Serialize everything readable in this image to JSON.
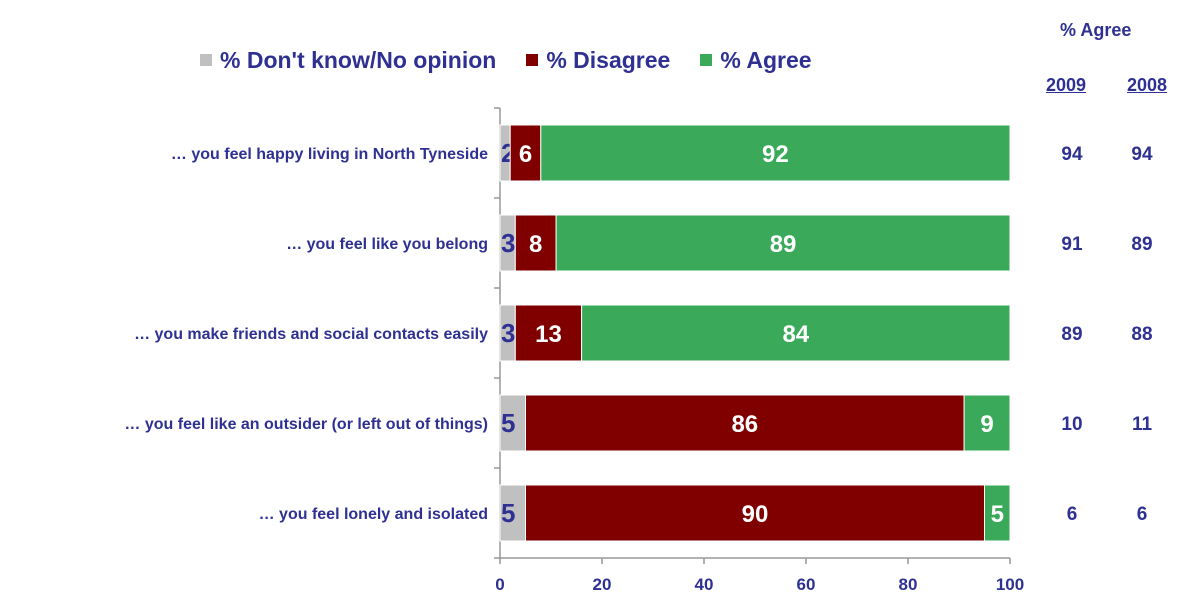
{
  "chart_data": {
    "type": "bar",
    "orientation": "horizontal",
    "stacked": true,
    "categories": [
      "… you feel happy living in North Tyneside",
      "… you feel like you belong",
      "… you make friends and social contacts easily",
      "… you feel like an outsider (or left out of things)",
      "… you feel lonely and isolated"
    ],
    "series": [
      {
        "name": "% Don't know/No opinion",
        "color": "#c0c0c0",
        "label_color": "#2e3192",
        "values": [
          2,
          3,
          3,
          5,
          5
        ]
      },
      {
        "name": "% Disagree",
        "color": "#800000",
        "label_color": "#ffffff",
        "values": [
          6,
          8,
          13,
          86,
          90
        ]
      },
      {
        "name": "% Agree",
        "color": "#3aaa5a",
        "label_color": "#ffffff",
        "values": [
          92,
          89,
          84,
          9,
          5
        ]
      }
    ],
    "xlim": [
      0,
      100
    ],
    "xticks": [
      0,
      20,
      40,
      60,
      80,
      100
    ],
    "grid": false,
    "legend_position": "top",
    "side_table": {
      "title": "% Agree",
      "columns": [
        "2009",
        "2008"
      ],
      "rows": [
        [
          "94",
          "94"
        ],
        [
          "91",
          "89"
        ],
        [
          "89",
          "88"
        ],
        [
          "10",
          "11"
        ],
        [
          "6",
          "6"
        ]
      ]
    }
  },
  "colors": {
    "text": "#2e3192",
    "axis": "#999999"
  }
}
